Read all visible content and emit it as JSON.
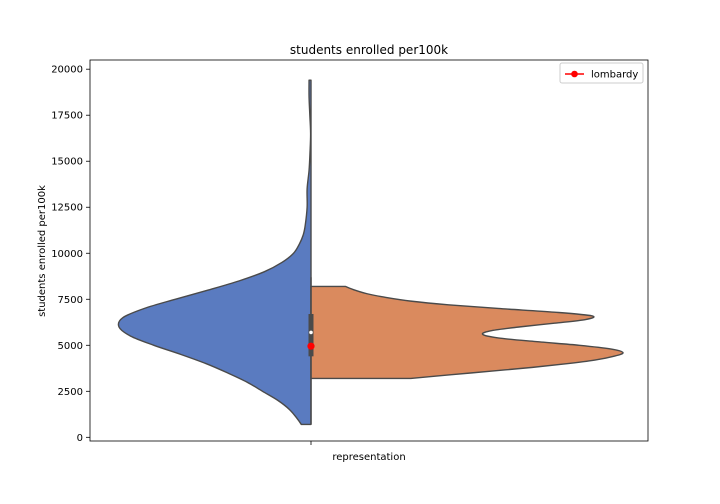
{
  "chart_data": {
    "type": "violin",
    "title": "students enrolled per100k",
    "xlabel": "",
    "ylabel": "students enrolled per100k",
    "categories": [
      "representation"
    ],
    "ylim": [
      -200,
      20500
    ],
    "yticks": [
      0,
      2500,
      5000,
      7500,
      10000,
      12500,
      15000,
      17500,
      20000
    ],
    "grid": false,
    "legend_position": "top-right",
    "split_violins": [
      {
        "side": "left",
        "color": "#5A7BC0",
        "profile": [
          {
            "y": 700,
            "w": 0.05
          },
          {
            "y": 1000,
            "w": 0.07
          },
          {
            "y": 1500,
            "w": 0.11
          },
          {
            "y": 2000,
            "w": 0.17
          },
          {
            "y": 2500,
            "w": 0.25
          },
          {
            "y": 3000,
            "w": 0.33
          },
          {
            "y": 3500,
            "w": 0.43
          },
          {
            "y": 4000,
            "w": 0.54
          },
          {
            "y": 4500,
            "w": 0.67
          },
          {
            "y": 5000,
            "w": 0.81
          },
          {
            "y": 5500,
            "w": 0.93
          },
          {
            "y": 6000,
            "w": 0.99
          },
          {
            "y": 6500,
            "w": 0.97
          },
          {
            "y": 7000,
            "w": 0.86
          },
          {
            "y": 7500,
            "w": 0.7
          },
          {
            "y": 8000,
            "w": 0.53
          },
          {
            "y": 8500,
            "w": 0.37
          },
          {
            "y": 9000,
            "w": 0.24
          },
          {
            "y": 9500,
            "w": 0.15
          },
          {
            "y": 10000,
            "w": 0.09
          },
          {
            "y": 10500,
            "w": 0.06
          },
          {
            "y": 11000,
            "w": 0.04
          },
          {
            "y": 11500,
            "w": 0.03
          },
          {
            "y": 12500,
            "w": 0.02
          },
          {
            "y": 13500,
            "w": 0.02
          },
          {
            "y": 14500,
            "w": 0.01
          },
          {
            "y": 15500,
            "w": 0.005
          },
          {
            "y": 16500,
            "w": 0.002
          },
          {
            "y": 17500,
            "w": 0.006
          },
          {
            "y": 18500,
            "w": 0.01
          },
          {
            "y": 19400,
            "w": 0.01
          }
        ]
      },
      {
        "side": "right",
        "color": "#DA8A5E",
        "profile": [
          {
            "y": 3200,
            "w": 0.32
          },
          {
            "y": 3400,
            "w": 0.45
          },
          {
            "y": 3600,
            "w": 0.58
          },
          {
            "y": 3800,
            "w": 0.71
          },
          {
            "y": 4000,
            "w": 0.82
          },
          {
            "y": 4200,
            "w": 0.91
          },
          {
            "y": 4400,
            "w": 0.97
          },
          {
            "y": 4600,
            "w": 1.0
          },
          {
            "y": 4800,
            "w": 0.96
          },
          {
            "y": 5000,
            "w": 0.86
          },
          {
            "y": 5200,
            "w": 0.72
          },
          {
            "y": 5400,
            "w": 0.6
          },
          {
            "y": 5600,
            "w": 0.55
          },
          {
            "y": 5800,
            "w": 0.58
          },
          {
            "y": 6000,
            "w": 0.67
          },
          {
            "y": 6200,
            "w": 0.78
          },
          {
            "y": 6400,
            "w": 0.88
          },
          {
            "y": 6600,
            "w": 0.9
          },
          {
            "y": 6800,
            "w": 0.78
          },
          {
            "y": 7000,
            "w": 0.6
          },
          {
            "y": 7200,
            "w": 0.44
          },
          {
            "y": 7400,
            "w": 0.32
          },
          {
            "y": 7600,
            "w": 0.24
          },
          {
            "y": 7800,
            "w": 0.18
          },
          {
            "y": 8000,
            "w": 0.14
          },
          {
            "y": 8200,
            "w": 0.11
          }
        ]
      }
    ],
    "inner_box": {
      "q1": 4400,
      "median": 5700,
      "q3": 6700,
      "whisker_low": 700,
      "whisker_high": 8700
    },
    "series": [
      {
        "name": "lombardy",
        "type": "point",
        "category": "representation",
        "value": 4950,
        "color": "#ff0000"
      }
    ]
  }
}
